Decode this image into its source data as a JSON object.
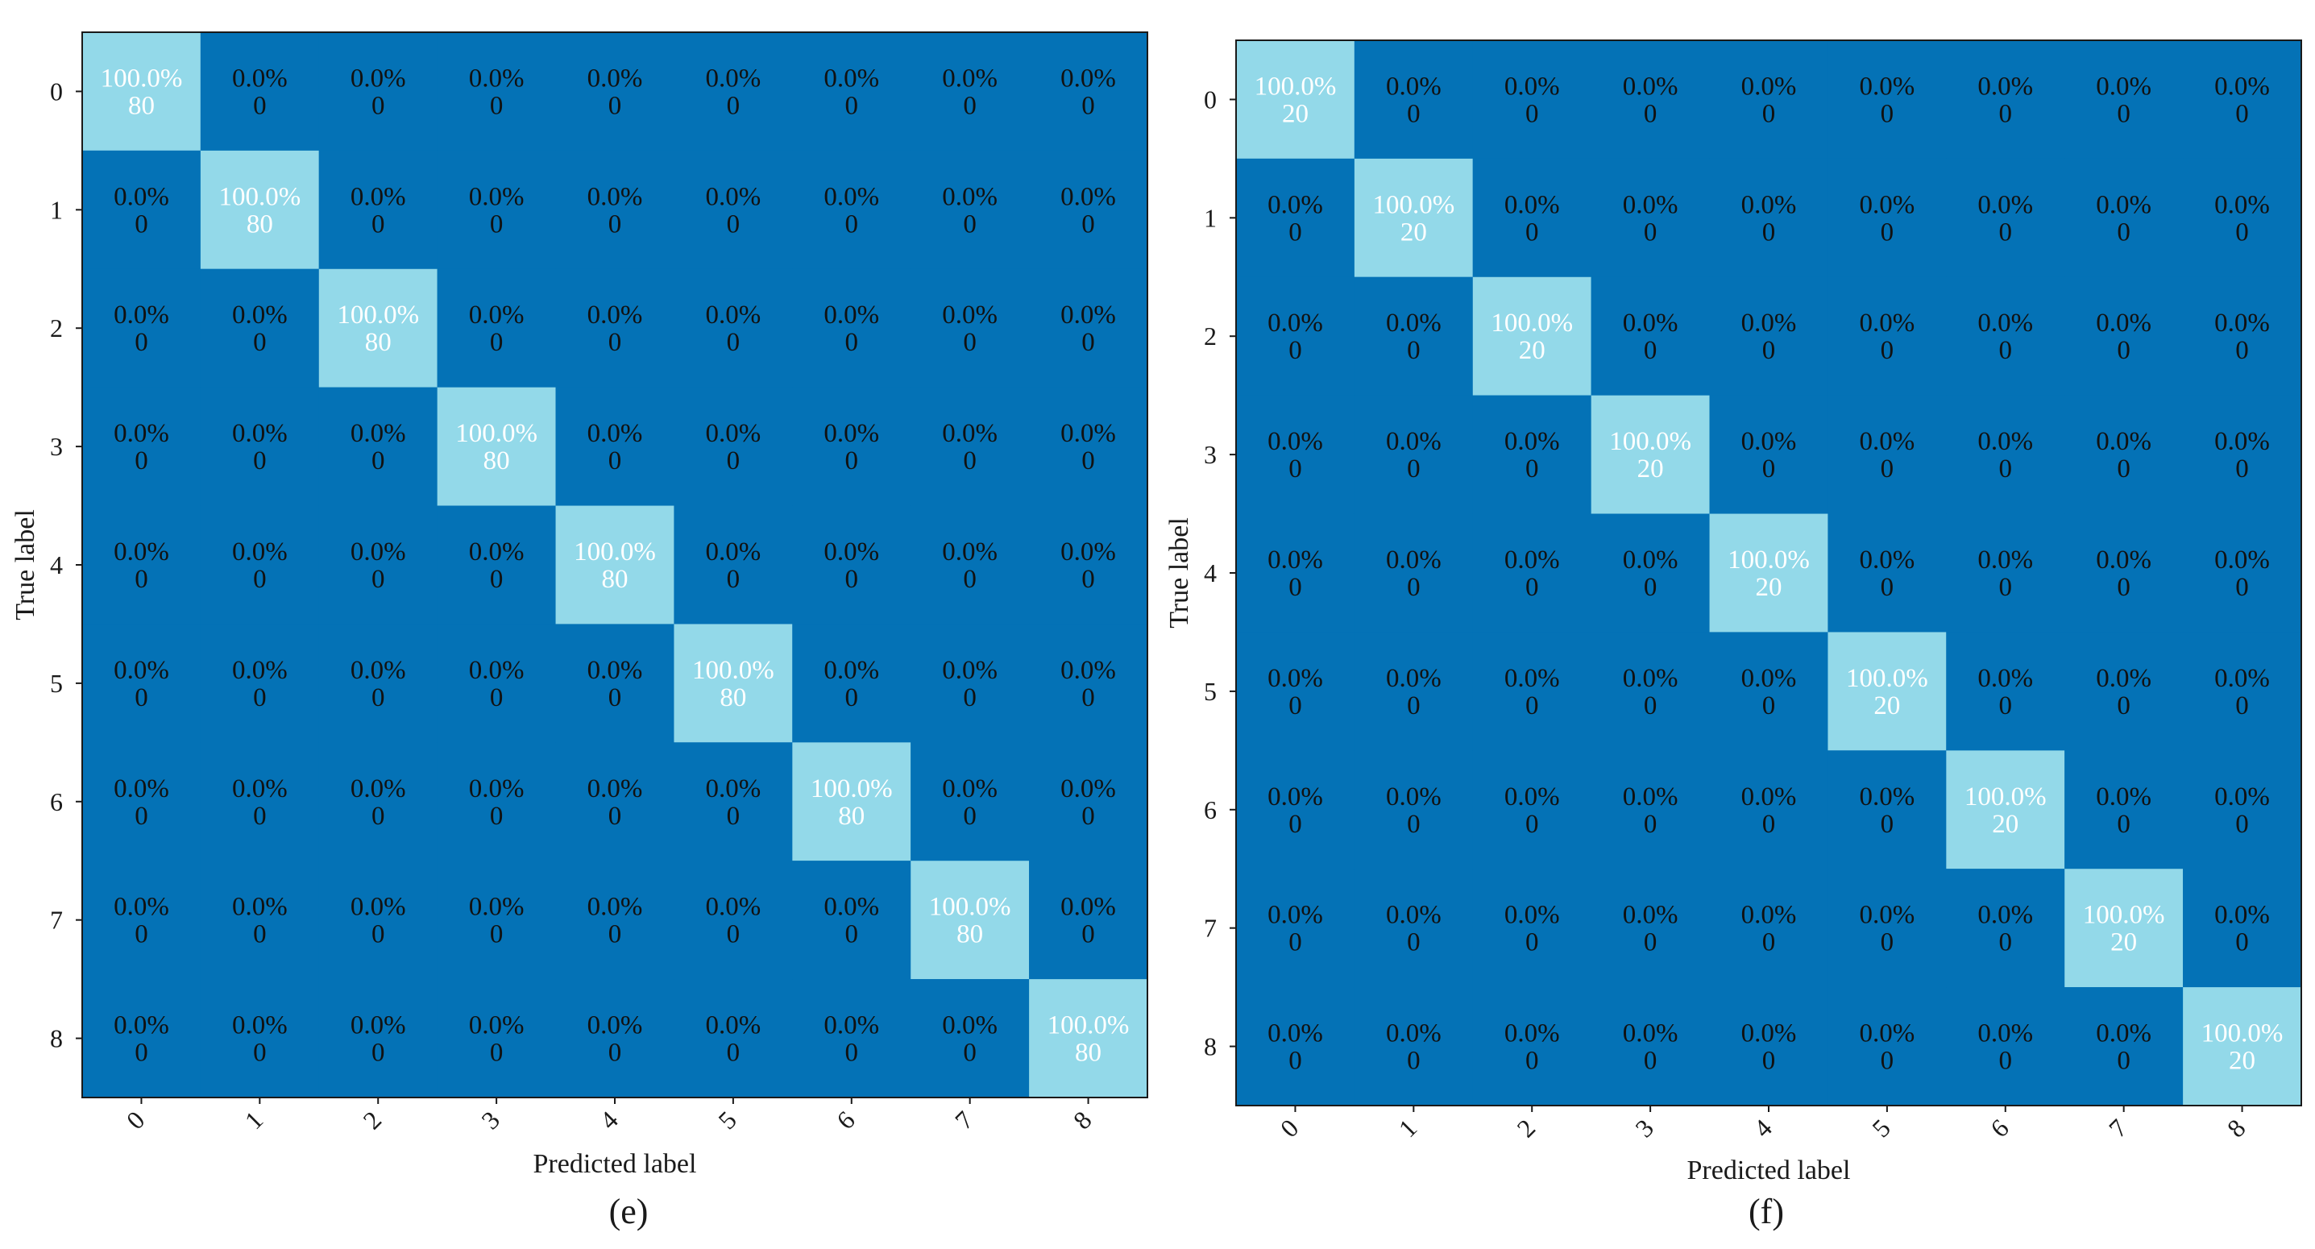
{
  "chart_data": [
    {
      "type": "heatmap",
      "caption": "(e)",
      "xlabel": "Predicted label",
      "ylabel": "True label",
      "classes": [
        "0",
        "1",
        "2",
        "3",
        "4",
        "5",
        "6",
        "7",
        "8"
      ],
      "matrix_counts": [
        [
          80,
          0,
          0,
          0,
          0,
          0,
          0,
          0,
          0
        ],
        [
          0,
          80,
          0,
          0,
          0,
          0,
          0,
          0,
          0
        ],
        [
          0,
          0,
          80,
          0,
          0,
          0,
          0,
          0,
          0
        ],
        [
          0,
          0,
          0,
          80,
          0,
          0,
          0,
          0,
          0
        ],
        [
          0,
          0,
          0,
          0,
          80,
          0,
          0,
          0,
          0
        ],
        [
          0,
          0,
          0,
          0,
          0,
          80,
          0,
          0,
          0
        ],
        [
          0,
          0,
          0,
          0,
          0,
          0,
          80,
          0,
          0
        ],
        [
          0,
          0,
          0,
          0,
          0,
          0,
          0,
          80,
          0
        ],
        [
          0,
          0,
          0,
          0,
          0,
          0,
          0,
          0,
          80
        ]
      ],
      "matrix_percent": [
        [
          "100.0%",
          "0.0%",
          "0.0%",
          "0.0%",
          "0.0%",
          "0.0%",
          "0.0%",
          "0.0%",
          "0.0%"
        ],
        [
          "0.0%",
          "100.0%",
          "0.0%",
          "0.0%",
          "0.0%",
          "0.0%",
          "0.0%",
          "0.0%",
          "0.0%"
        ],
        [
          "0.0%",
          "0.0%",
          "100.0%",
          "0.0%",
          "0.0%",
          "0.0%",
          "0.0%",
          "0.0%",
          "0.0%"
        ],
        [
          "0.0%",
          "0.0%",
          "0.0%",
          "100.0%",
          "0.0%",
          "0.0%",
          "0.0%",
          "0.0%",
          "0.0%"
        ],
        [
          "0.0%",
          "0.0%",
          "0.0%",
          "0.0%",
          "100.0%",
          "0.0%",
          "0.0%",
          "0.0%",
          "0.0%"
        ],
        [
          "0.0%",
          "0.0%",
          "0.0%",
          "0.0%",
          "0.0%",
          "100.0%",
          "0.0%",
          "0.0%",
          "0.0%"
        ],
        [
          "0.0%",
          "0.0%",
          "0.0%",
          "0.0%",
          "0.0%",
          "0.0%",
          "100.0%",
          "0.0%",
          "0.0%"
        ],
        [
          "0.0%",
          "0.0%",
          "0.0%",
          "0.0%",
          "0.0%",
          "0.0%",
          "0.0%",
          "100.0%",
          "0.0%"
        ],
        [
          "0.0%",
          "0.0%",
          "0.0%",
          "0.0%",
          "0.0%",
          "0.0%",
          "0.0%",
          "0.0%",
          "100.0%"
        ]
      ],
      "colors": {
        "low": "#0472b6",
        "high": "#93d9e9",
        "text_low": "#111111",
        "text_high": "#ffffff"
      }
    },
    {
      "type": "heatmap",
      "caption": "(f)",
      "xlabel": "Predicted label",
      "ylabel": "True label",
      "classes": [
        "0",
        "1",
        "2",
        "3",
        "4",
        "5",
        "6",
        "7",
        "8"
      ],
      "matrix_counts": [
        [
          20,
          0,
          0,
          0,
          0,
          0,
          0,
          0,
          0
        ],
        [
          0,
          20,
          0,
          0,
          0,
          0,
          0,
          0,
          0
        ],
        [
          0,
          0,
          20,
          0,
          0,
          0,
          0,
          0,
          0
        ],
        [
          0,
          0,
          0,
          20,
          0,
          0,
          0,
          0,
          0
        ],
        [
          0,
          0,
          0,
          0,
          20,
          0,
          0,
          0,
          0
        ],
        [
          0,
          0,
          0,
          0,
          0,
          20,
          0,
          0,
          0
        ],
        [
          0,
          0,
          0,
          0,
          0,
          0,
          20,
          0,
          0
        ],
        [
          0,
          0,
          0,
          0,
          0,
          0,
          0,
          20,
          0
        ],
        [
          0,
          0,
          0,
          0,
          0,
          0,
          0,
          0,
          20
        ]
      ],
      "matrix_percent": [
        [
          "100.0%",
          "0.0%",
          "0.0%",
          "0.0%",
          "0.0%",
          "0.0%",
          "0.0%",
          "0.0%",
          "0.0%"
        ],
        [
          "0.0%",
          "100.0%",
          "0.0%",
          "0.0%",
          "0.0%",
          "0.0%",
          "0.0%",
          "0.0%",
          "0.0%"
        ],
        [
          "0.0%",
          "0.0%",
          "100.0%",
          "0.0%",
          "0.0%",
          "0.0%",
          "0.0%",
          "0.0%",
          "0.0%"
        ],
        [
          "0.0%",
          "0.0%",
          "0.0%",
          "100.0%",
          "0.0%",
          "0.0%",
          "0.0%",
          "0.0%",
          "0.0%"
        ],
        [
          "0.0%",
          "0.0%",
          "0.0%",
          "0.0%",
          "100.0%",
          "0.0%",
          "0.0%",
          "0.0%",
          "0.0%"
        ],
        [
          "0.0%",
          "0.0%",
          "0.0%",
          "0.0%",
          "0.0%",
          "100.0%",
          "0.0%",
          "0.0%",
          "0.0%"
        ],
        [
          "0.0%",
          "0.0%",
          "0.0%",
          "0.0%",
          "0.0%",
          "0.0%",
          "100.0%",
          "0.0%",
          "0.0%"
        ],
        [
          "0.0%",
          "0.0%",
          "0.0%",
          "0.0%",
          "0.0%",
          "0.0%",
          "0.0%",
          "100.0%",
          "0.0%"
        ],
        [
          "0.0%",
          "0.0%",
          "0.0%",
          "0.0%",
          "0.0%",
          "0.0%",
          "0.0%",
          "0.0%",
          "100.0%"
        ]
      ],
      "colors": {
        "low": "#0472b6",
        "high": "#93d9e9",
        "text_low": "#111111",
        "text_high": "#ffffff"
      }
    }
  ]
}
